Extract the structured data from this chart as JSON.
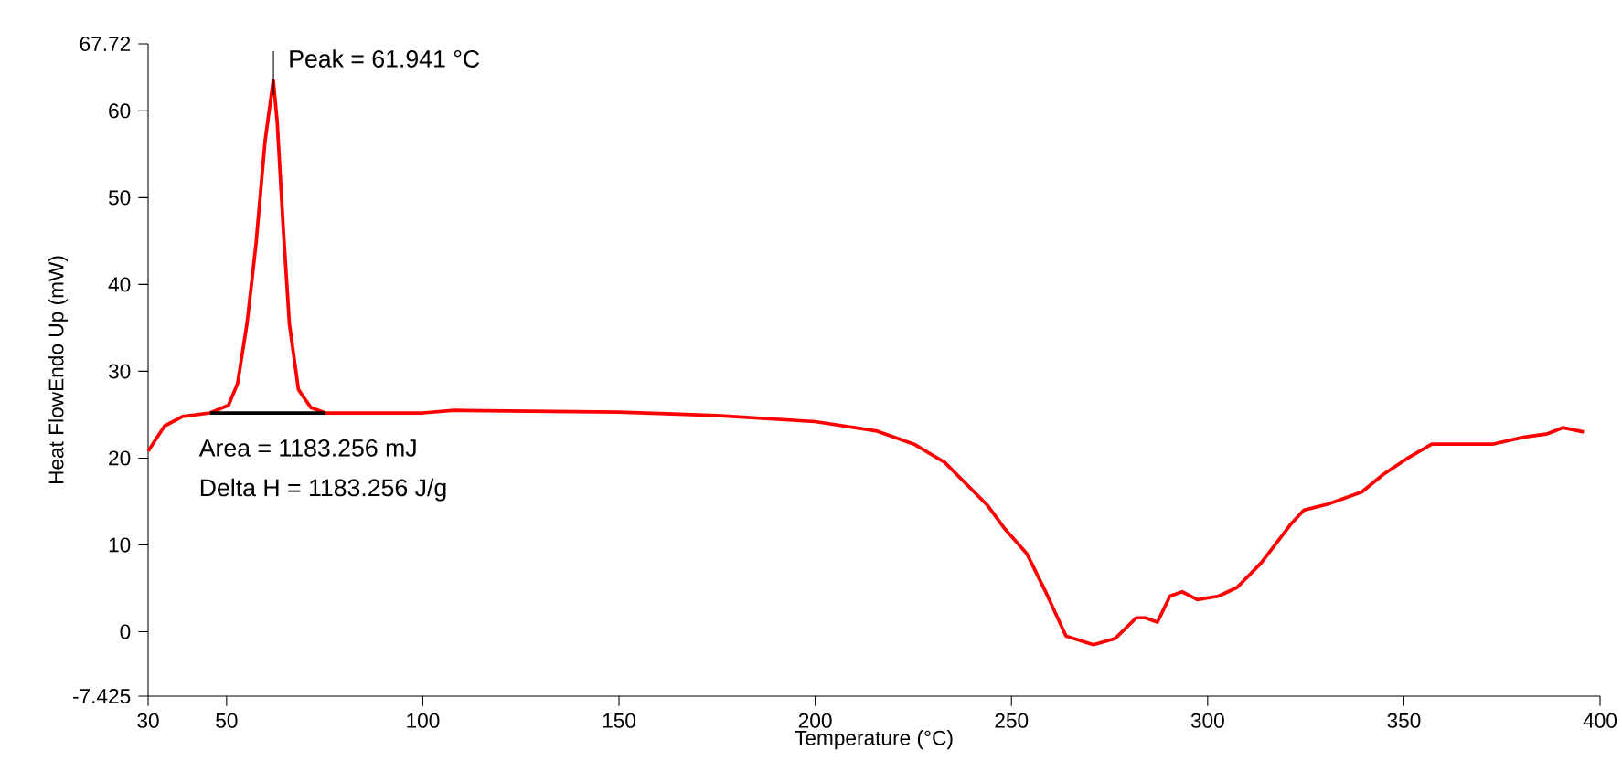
{
  "chart_data": {
    "type": "line",
    "xlabel": "Temperature (°C)",
    "ylabel": "Heat FlowEndo Up (mW)",
    "xlim": [
      30,
      400
    ],
    "ylim": [
      -7.425,
      67.72
    ],
    "xticks": [
      30,
      50,
      100,
      150,
      200,
      250,
      300,
      350,
      400
    ],
    "yticks": [
      -7.425,
      0,
      10,
      20,
      30,
      40,
      50,
      60,
      67.72
    ],
    "grid": false,
    "series": [
      {
        "color": "#ff0000",
        "x": [
          30,
          34.2,
          38.8,
          45.8,
          50.5,
          52.8,
          55.2,
          57.5,
          59.8,
          61.9,
          62.9,
          64.5,
          66,
          68.3,
          71.5,
          75.2,
          100,
          108,
          150,
          175,
          200,
          215.8,
          225.2,
          233,
          243.8,
          248.4,
          253.9,
          258.5,
          263.9,
          270.9,
          276.4,
          281.8,
          284.1,
          287.2,
          290.4,
          293.5,
          297.4,
          302.8,
          307.5,
          313.6,
          321.4,
          324.5,
          330.7,
          339.3,
          344.7,
          351,
          357.1,
          372.6,
          380.4,
          386.6,
          390.5,
          395.9
        ],
        "values": [
          20.8,
          23.7,
          24.8,
          25.2,
          26.1,
          28.6,
          35.5,
          44.7,
          56.5,
          63.5,
          58.7,
          46,
          35.5,
          27.9,
          25.8,
          25.2,
          25.2,
          25.5,
          25.3,
          24.9,
          24.2,
          23.1,
          21.6,
          19.5,
          14.6,
          11.8,
          9.0,
          4.8,
          -0.5,
          -1.5,
          -0.8,
          1.6,
          1.6,
          1.1,
          4.1,
          4.6,
          3.7,
          4.1,
          5.1,
          7.9,
          12.5,
          14.0,
          14.7,
          16.1,
          18.1,
          20.0,
          21.6,
          21.6,
          22.4,
          22.8,
          23.5,
          23.0
        ]
      },
      {
        "color": "#000000",
        "x": [
          45.8,
          75.2
        ],
        "values": [
          25.2,
          25.2
        ]
      }
    ],
    "annotations": [
      {
        "text": "Peak = 61.941 °C",
        "x": 61.941,
        "y": 63.5
      },
      "Area = 1183.256 mJ",
      "Delta H = 1183.256 J/g"
    ]
  }
}
